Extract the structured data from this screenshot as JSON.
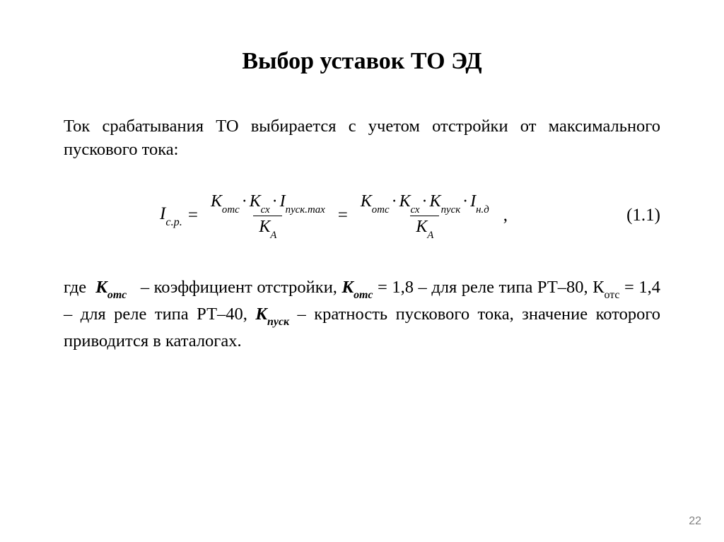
{
  "title": "Выбор уставок ТО ЭД",
  "intro": "Ток срабатывания ТО выбирается с учетом отстройки от максимального пускового тока:",
  "eq": {
    "lhs_base": "I",
    "lhs_sub": "с.р.",
    "eqsign": "=",
    "mult": "·",
    "K": "К",
    "Klat": "K",
    "I": "I",
    "sub_otc": "отс",
    "sub_cx": "сх",
    "sub_pusk_max": "пуск.max",
    "sub_pusk": "пуск",
    "sub_A": "A",
    "sub_nd": "н.д",
    "number": "(1.1)",
    "comma": ","
  },
  "explain": {
    "gde": "где",
    "Kotc_label_base": "К",
    "Kotc_label_sub": "отс",
    "dash": "–",
    "Kotc_desc": "коэффициент отстройки,",
    "Kotc_eq1": "= 1,8",
    "Kotc_rt80": "для реле типа РТ–80,",
    "Kotc_plain_base": "К",
    "Kotc_plain_sub": "отс",
    "Kotc_eq2": "= 1,4",
    "Kotc_rt40": "для реле типа РТ–40,",
    "Kpusk_base": "К",
    "Kpusk_sub": "пуск",
    "Kpusk_desc": "кратность пускового тока, значение которого приводится в каталогах."
  },
  "pagenum": "22"
}
